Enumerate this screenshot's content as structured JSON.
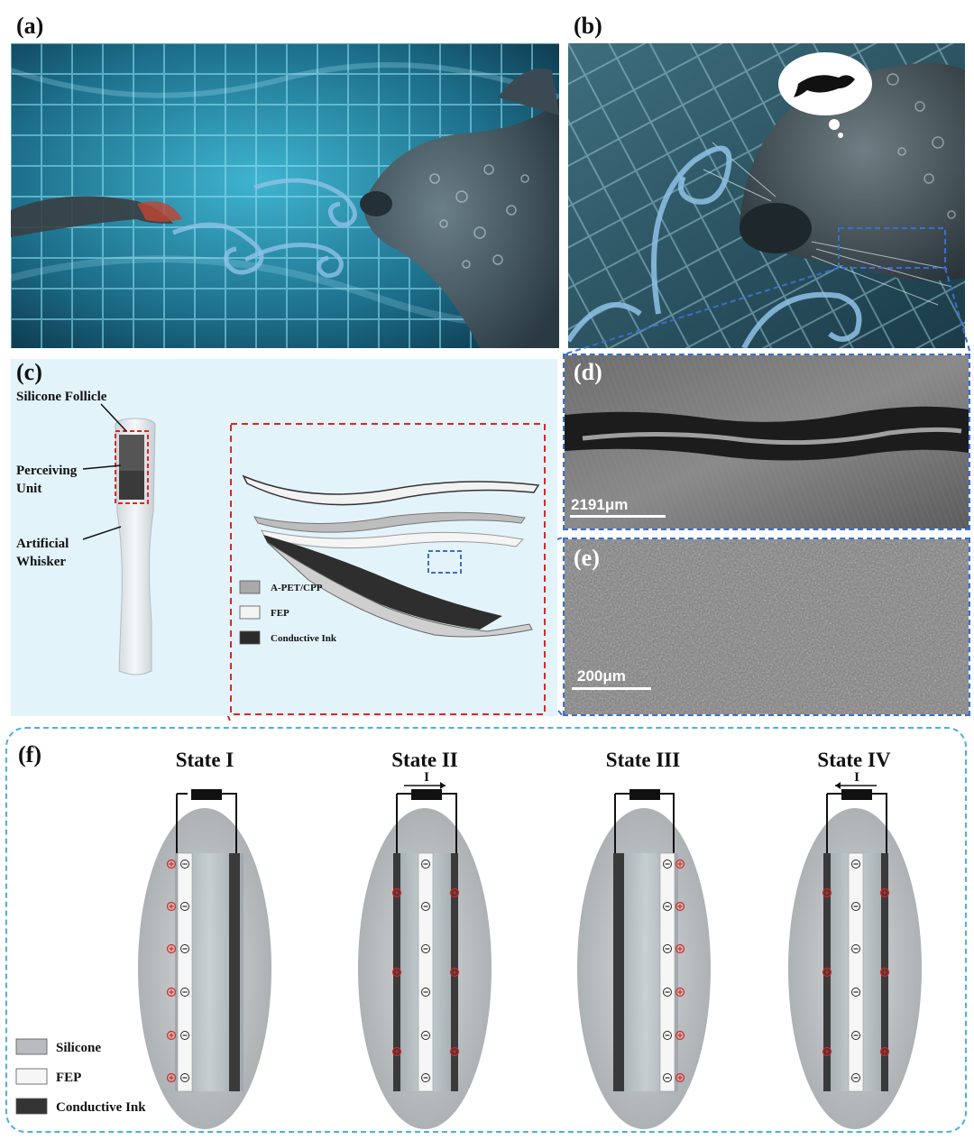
{
  "panels": {
    "a": {
      "label": "(a)"
    },
    "b": {
      "label": "(b)"
    },
    "c": {
      "label": "(c)",
      "silicone_follicle": "Silicone Follicle",
      "perceiving_unit_line1": "Perceiving",
      "perceiving_unit_line2": "Unit",
      "artificial_whisker_line1": "Artificial",
      "artificial_whisker_line2": "Whisker",
      "legend": [
        {
          "label": "A-PET/CPP",
          "color": "#a9a9a9"
        },
        {
          "label": "FEP",
          "color": "#f4f4f4"
        },
        {
          "label": "Conductive Ink",
          "color": "#2a2a2a"
        }
      ]
    },
    "d": {
      "label": "(d)",
      "scale": "2191μm"
    },
    "e": {
      "label": "(e)",
      "scale": "200μm"
    },
    "f": {
      "label": "(f)",
      "states": [
        {
          "title": "State I",
          "current": ""
        },
        {
          "title": "State II",
          "current": "I"
        },
        {
          "title": "State III",
          "current": ""
        },
        {
          "title": "State IV",
          "current": "I"
        }
      ],
      "legend": [
        {
          "label": "Silicone",
          "color": "#b8bcbf"
        },
        {
          "label": "FEP",
          "color": "#f6f6f6"
        },
        {
          "label": "Conductive Ink",
          "color": "#333333"
        }
      ]
    }
  },
  "colors": {
    "pool_blue": "#1f7a95",
    "c_background": "#e3f3fa",
    "red_dash": "#e02424",
    "blue_dash": "#3a6fc9",
    "f_border": "#49b0e6"
  }
}
